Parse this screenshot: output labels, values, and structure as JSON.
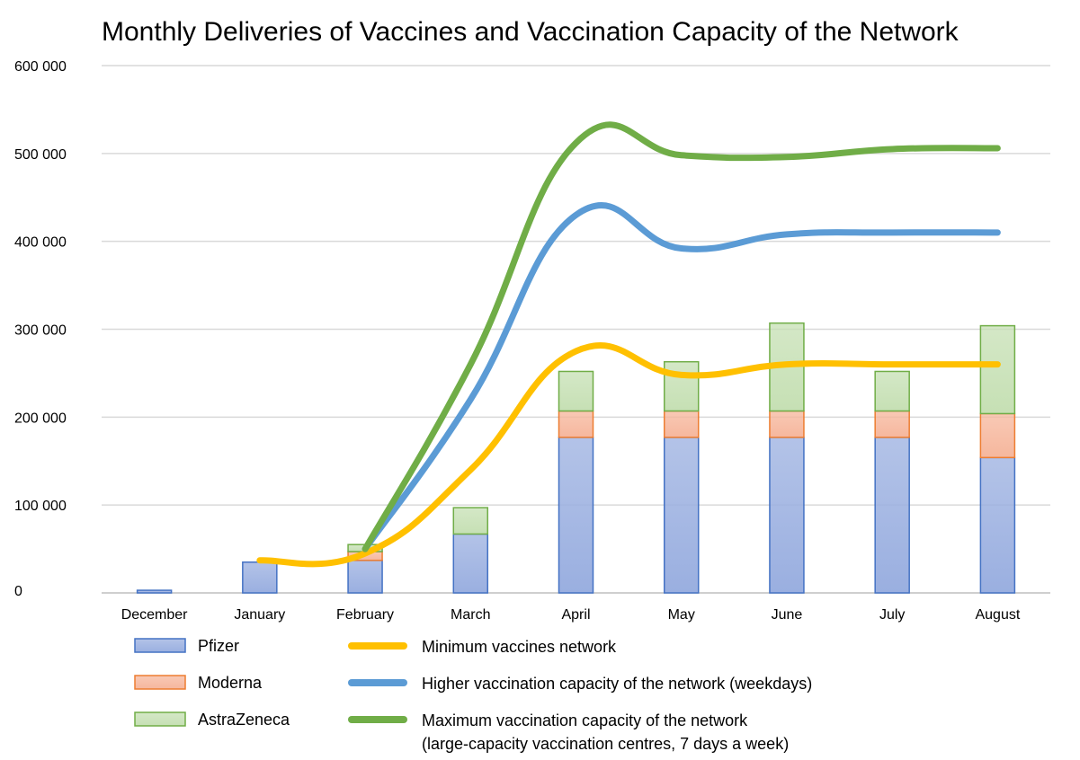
{
  "chart_data": {
    "type": "bar",
    "title": "Monthly Deliveries of Vaccines and Vaccination Capacity of the Network",
    "xlabel": "",
    "ylabel": "",
    "ylim": [
      0,
      600000
    ],
    "yticks": [
      "0",
      "100 000",
      "200 000",
      "300 000",
      "400 000",
      "500 000",
      "600 000"
    ],
    "categories": [
      "December",
      "January",
      "February",
      "March",
      "April",
      "May",
      "June",
      "July",
      "August"
    ],
    "stacked": true,
    "grid": true,
    "series": [
      {
        "name": "Pfizer",
        "kind": "bar",
        "fill": "#9aafe0",
        "stroke": "#4472c4",
        "values": [
          3000,
          35000,
          37000,
          67000,
          177000,
          177000,
          177000,
          177000,
          154000
        ]
      },
      {
        "name": "Moderna",
        "kind": "bar",
        "fill": "#f6b79d",
        "stroke": "#ed7d31",
        "values": [
          0,
          0,
          10000,
          0,
          30000,
          30000,
          30000,
          30000,
          50000
        ]
      },
      {
        "name": "AstraZeneca",
        "kind": "bar",
        "fill": "#c6e0b4",
        "stroke": "#70ad47",
        "values": [
          0,
          0,
          8000,
          30000,
          45000,
          56000,
          100000,
          45000,
          100000
        ]
      }
    ],
    "lines": [
      {
        "name": "Minimum vaccines network",
        "color": "#ffc000",
        "x": [
          "January",
          "February",
          "March",
          "April",
          "May",
          "June",
          "July",
          "August"
        ],
        "values": [
          37000,
          45000,
          140000,
          275000,
          248000,
          260000,
          260000,
          260000
        ]
      },
      {
        "name": "Higher vaccination capacity of the network (weekdays)",
        "color": "#5b9bd5",
        "x": [
          "February",
          "March",
          "April",
          "May",
          "June",
          "July",
          "August"
        ],
        "values": [
          50000,
          220000,
          430000,
          392000,
          408000,
          410000,
          410000
        ]
      },
      {
        "name": "Maximum vaccination capacity of the network",
        "name_line2": "(large-capacity vaccination centres, 7 days a week)",
        "color": "#70ad47",
        "x": [
          "February",
          "March",
          "April",
          "May",
          "June",
          "July",
          "August"
        ],
        "values": [
          50000,
          260000,
          512000,
          498000,
          496000,
          505000,
          506000
        ]
      }
    ],
    "legend": "bottom"
  }
}
